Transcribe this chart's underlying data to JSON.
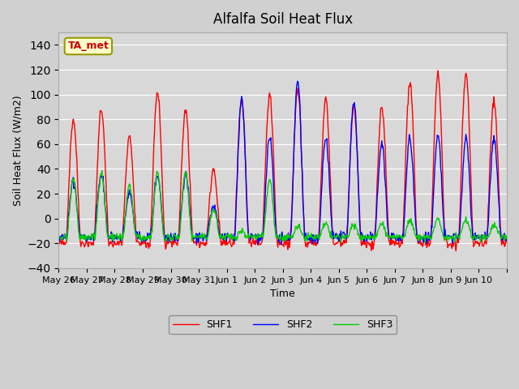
{
  "title": "Alfalfa Soil Heat Flux",
  "xlabel": "Time",
  "ylabel": "Soil Heat Flux (W/m2)",
  "ylim": [
    -40,
    150
  ],
  "yticks": [
    -40,
    -20,
    0,
    20,
    40,
    60,
    80,
    100,
    120,
    140
  ],
  "background_color": "#e8e8e8",
  "plot_bg_color": "#d8d8d8",
  "line_colors": {
    "SHF1": "#ff0000",
    "SHF2": "#0000ff",
    "SHF3": "#00cc00"
  },
  "legend_label": "TA_met",
  "x_tick_labels": [
    "May 26",
    "May 27",
    "May 28",
    "May 29",
    "May 30",
    "May 31",
    "Jun 1",
    "Jun 2",
    "Jun 3",
    "Jun 4",
    "Jun 5",
    "Jun 6",
    "Jun 7",
    "Jun 8",
    "Jun 9",
    "Jun 10"
  ],
  "n_days": 16,
  "start_day": 0
}
